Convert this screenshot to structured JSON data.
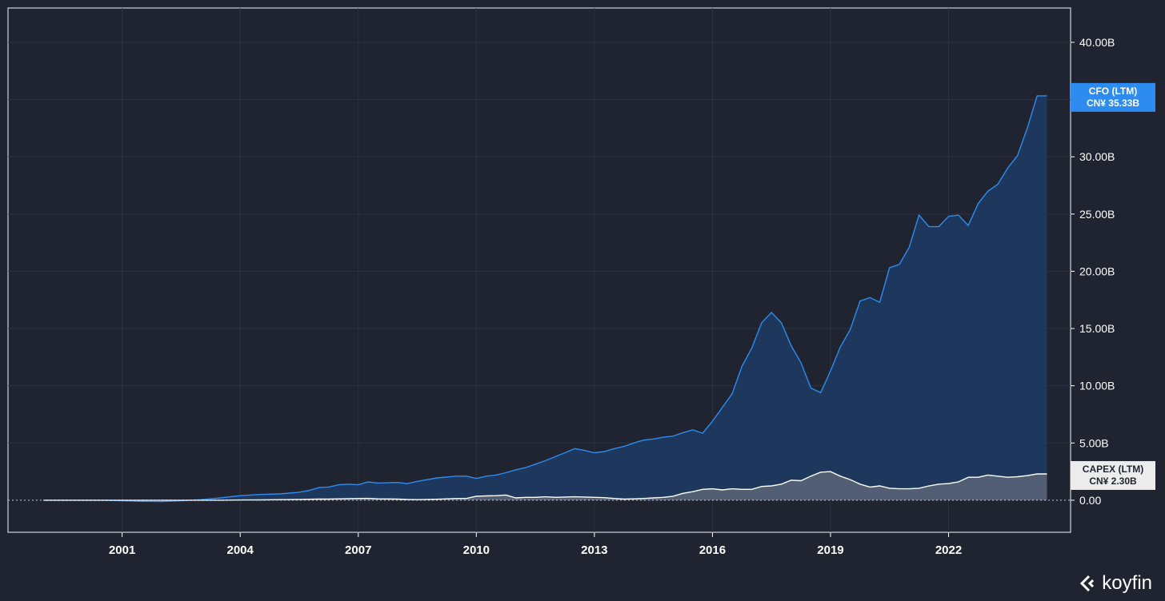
{
  "chart_data": {
    "type": "area",
    "x_ticks": [
      "2001",
      "2004",
      "2007",
      "2010",
      "2013",
      "2016",
      "2019",
      "2022"
    ],
    "y_ticks": [
      "0.00",
      "5.00B",
      "10.00B",
      "15.00B",
      "20.00B",
      "25.00B",
      "30.00B",
      "35.00B",
      "40.00B"
    ],
    "ylim": [
      -2.8,
      43
    ],
    "xlim": [
      1998.1,
      2025.1
    ],
    "grid": true,
    "x": [
      1999.0,
      1999.5,
      2000.0,
      2000.5,
      2001.0,
      2001.5,
      2002.0,
      2002.5,
      2003.0,
      2003.5,
      2004.0,
      2004.5,
      2005.0,
      2005.5,
      2005.75,
      2006.0,
      2006.25,
      2006.5,
      2006.75,
      2007.0,
      2007.25,
      2007.5,
      2008.0,
      2008.25,
      2008.5,
      2009.0,
      2009.5,
      2009.75,
      2010.0,
      2010.25,
      2010.5,
      2010.75,
      2011.0,
      2011.25,
      2011.5,
      2011.75,
      2012.0,
      2012.25,
      2012.5,
      2012.75,
      2013.0,
      2013.25,
      2013.5,
      2013.75,
      2014.0,
      2014.25,
      2014.5,
      2014.75,
      2015.0,
      2015.25,
      2015.5,
      2015.75,
      2016.0,
      2016.25,
      2016.5,
      2016.75,
      2017.0,
      2017.25,
      2017.5,
      2017.75,
      2018.0,
      2018.25,
      2018.5,
      2018.75,
      2019.0,
      2019.25,
      2019.5,
      2019.75,
      2020.0,
      2020.25,
      2020.5,
      2020.75,
      2021.0,
      2021.25,
      2021.5,
      2021.75,
      2022.0,
      2022.25,
      2022.5,
      2022.75,
      2023.0,
      2023.25,
      2023.5,
      2023.75,
      2024.0,
      2024.25,
      2024.5
    ],
    "series": [
      {
        "name": "CFO (LTM)",
        "color": "#2e8cf0",
        "fill": "#1e3a5f",
        "values": [
          0,
          0,
          0,
          0,
          -0.05,
          -0.1,
          -0.12,
          -0.05,
          0.05,
          0.2,
          0.4,
          0.5,
          0.55,
          0.7,
          0.85,
          1.1,
          1.15,
          1.35,
          1.4,
          1.35,
          1.6,
          1.5,
          1.55,
          1.45,
          1.65,
          1.95,
          2.1,
          2.1,
          1.9,
          2.1,
          2.2,
          2.4,
          2.65,
          2.85,
          3.15,
          3.45,
          3.8,
          4.15,
          4.5,
          4.35,
          4.15,
          4.25,
          4.5,
          4.7,
          5.0,
          5.25,
          5.35,
          5.5,
          5.6,
          5.9,
          6.15,
          5.85,
          6.9,
          8.1,
          9.3,
          11.7,
          13.3,
          15.5,
          16.4,
          15.5,
          13.5,
          12.0,
          9.8,
          9.4,
          11.3,
          13.4,
          14.9,
          17.4,
          17.7,
          17.3,
          20.3,
          20.6,
          22.1,
          24.9,
          23.9,
          23.9,
          24.8,
          24.9,
          24.0,
          25.9,
          27.0,
          27.6,
          29.0,
          30.1,
          32.5,
          35.33,
          35.33
        ]
      },
      {
        "name": "CAPEX (LTM)",
        "color": "#ffffff",
        "fill": "#5a6577",
        "values": [
          0,
          0,
          0,
          0,
          0,
          0,
          0,
          0,
          0,
          0,
          0.02,
          0.03,
          0.05,
          0.07,
          0.08,
          0.1,
          0.1,
          0.12,
          0.14,
          0.15,
          0.16,
          0.12,
          0.1,
          0.06,
          0.05,
          0.08,
          0.15,
          0.15,
          0.35,
          0.38,
          0.4,
          0.45,
          0.2,
          0.25,
          0.25,
          0.3,
          0.25,
          0.28,
          0.3,
          0.28,
          0.25,
          0.22,
          0.15,
          0.1,
          0.12,
          0.15,
          0.2,
          0.25,
          0.35,
          0.6,
          0.75,
          0.95,
          1.0,
          0.9,
          1.0,
          0.95,
          0.95,
          1.2,
          1.25,
          1.4,
          1.75,
          1.7,
          2.1,
          2.45,
          2.5,
          2.1,
          1.8,
          1.4,
          1.15,
          1.25,
          1.05,
          1.0,
          1.0,
          1.05,
          1.25,
          1.4,
          1.45,
          1.6,
          2.0,
          2.0,
          2.2,
          2.1,
          2.0,
          2.05,
          2.15,
          2.3,
          2.3
        ]
      }
    ]
  },
  "tags": [
    {
      "label": "CFO (LTM)",
      "value": "CN¥ 35.33B",
      "bg": "#2e8cf0",
      "fg": "#ffffff"
    },
    {
      "label": "CAPEX (LTM)",
      "value": "CN¥ 2.30B",
      "bg": "#ececec",
      "fg": "#1f2430"
    }
  ],
  "logo": {
    "text": "koyfin"
  }
}
